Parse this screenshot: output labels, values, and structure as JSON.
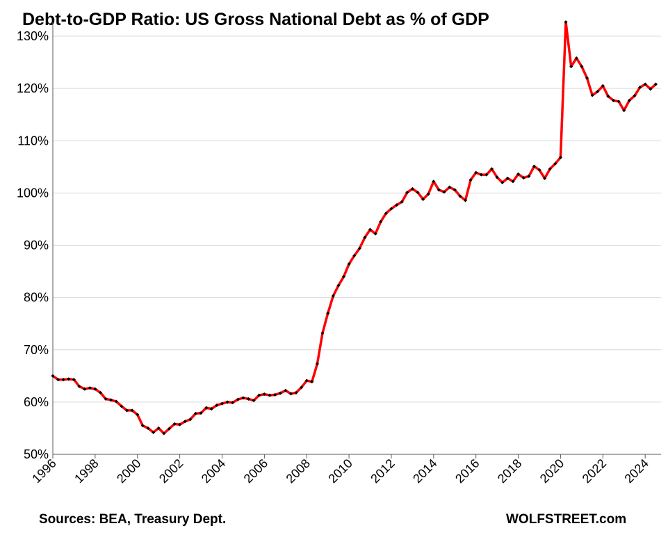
{
  "chart_data": {
    "type": "line",
    "title": "Debt-to-GDP Ratio: US Gross National Debt as % of GDP",
    "xlabel": "",
    "ylabel": "",
    "source": "Sources: BEA, Treasury Dept.",
    "brand": "WOLFSTREET.com",
    "xlim": [
      1996,
      2024.75
    ],
    "ylim": [
      50,
      130
    ],
    "x_ticks": [
      "1996",
      "1998",
      "2000",
      "2002",
      "2004",
      "2006",
      "2008",
      "2010",
      "2012",
      "2014",
      "2016",
      "2018",
      "2020",
      "2022",
      "2024"
    ],
    "y_ticks": [
      "50%",
      "60%",
      "70%",
      "80%",
      "90%",
      "100%",
      "110%",
      "120%",
      "130%"
    ],
    "grid": "horizontal",
    "line_color": "#ff0000",
    "marker_color": "#000000",
    "series": [
      {
        "x_start": 1996.0,
        "x_step": 0.25,
        "values": [
          65.0,
          64.3,
          64.3,
          64.4,
          64.3,
          63.0,
          62.5,
          62.7,
          62.5,
          61.8,
          60.6,
          60.4,
          60.1,
          59.2,
          58.4,
          58.4,
          57.6,
          55.5,
          55.0,
          54.2,
          55.0,
          54.0,
          54.9,
          55.8,
          55.7,
          56.3,
          56.7,
          57.8,
          57.9,
          58.9,
          58.7,
          59.4,
          59.7,
          60.0,
          59.9,
          60.5,
          60.8,
          60.6,
          60.3,
          61.3,
          61.5,
          61.3,
          61.4,
          61.7,
          62.2,
          61.6,
          61.8,
          62.8,
          64.1,
          63.9,
          67.3,
          73.2,
          77.0,
          80.3,
          82.3,
          84.0,
          86.4,
          88.0,
          89.4,
          91.5,
          93.0,
          92.2,
          94.5,
          96.1,
          97.0,
          97.7,
          98.3,
          100.1,
          100.8,
          100.1,
          98.8,
          99.8,
          102.2,
          100.6,
          100.2,
          101.1,
          100.6,
          99.4,
          98.6,
          102.5,
          103.9,
          103.5,
          103.5,
          104.6,
          103.0,
          102.0,
          102.8,
          102.2,
          103.6,
          102.9,
          103.2,
          105.1,
          104.4,
          102.8,
          104.6,
          105.6,
          106.8,
          132.7,
          124.2,
          125.8,
          124.2,
          122.0,
          118.7,
          119.4,
          120.5,
          118.5,
          117.7,
          117.5,
          115.8,
          117.7,
          118.6,
          120.2,
          120.8,
          119.9,
          120.8
        ]
      }
    ]
  }
}
